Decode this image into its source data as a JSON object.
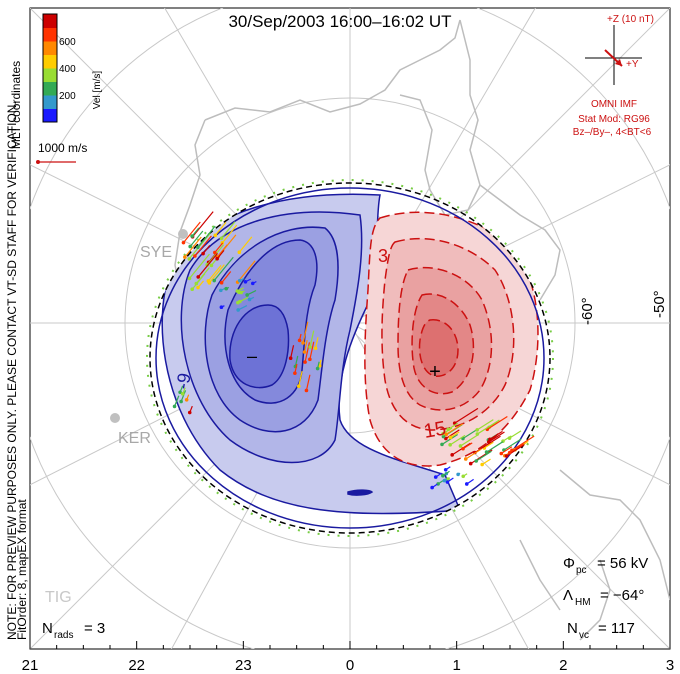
{
  "chart_data": {
    "type": "contour",
    "title": "30/Sep/2003 16:00–16:02 UT",
    "coordinate_system": "MLT coordinates",
    "mlt_axis": {
      "ticks": [
        "21",
        "22",
        "23",
        "0",
        "1",
        "2",
        "3"
      ]
    },
    "latitude_labels": [
      "-60°",
      "-50°"
    ],
    "colorbar": {
      "label": "Vel [m/s]",
      "ticks": [
        "200",
        "400",
        "600"
      ],
      "range": [
        0,
        800
      ],
      "colors": [
        "#1a1aff",
        "#3399cc",
        "#33aa55",
        "#99dd33",
        "#ffcc00",
        "#ff8800",
        "#ff3300",
        "#cc0000"
      ]
    },
    "reference_vector": "1000 m/s",
    "contour_labels": [
      "-9",
      "3",
      "15"
    ],
    "potential_markers": {
      "min": "–",
      "max": "+"
    },
    "radar_sites": [
      "SYE",
      "KER",
      "TIG"
    ],
    "imf_clock": {
      "z_label": "+Z (10 nT)",
      "y_label": "+Y",
      "source": "OMNI IMF"
    },
    "stat_model": {
      "line1": "Stat Mod: RG96",
      "line2": "Bz–/By–, 4<BT<6"
    },
    "side_notes": {
      "line1": "NOTE: FOR PREVIEW PURPOSES ONLY. PLEASE CONTACT VT-SD STAFF FOR VERIFICATION.",
      "line2": "FitOrder: 8, mapEX format"
    },
    "stats": {
      "phi_symbol": "Φ",
      "phi_sub": "pc",
      "phi_value": "= 56 kV",
      "lambda_symbol": "Λ",
      "lambda_sub": "HM",
      "lambda_value": "= −64°",
      "nvc_symbol": "N",
      "nvc_sub": "vc",
      "nvc_value": "= 117",
      "nrads_symbol": "N",
      "nrads_sub": "rads",
      "nrads_value": "= 3"
    },
    "negative_cell_color": "#1a1aa0",
    "positive_cell_color": "#cc1111"
  }
}
